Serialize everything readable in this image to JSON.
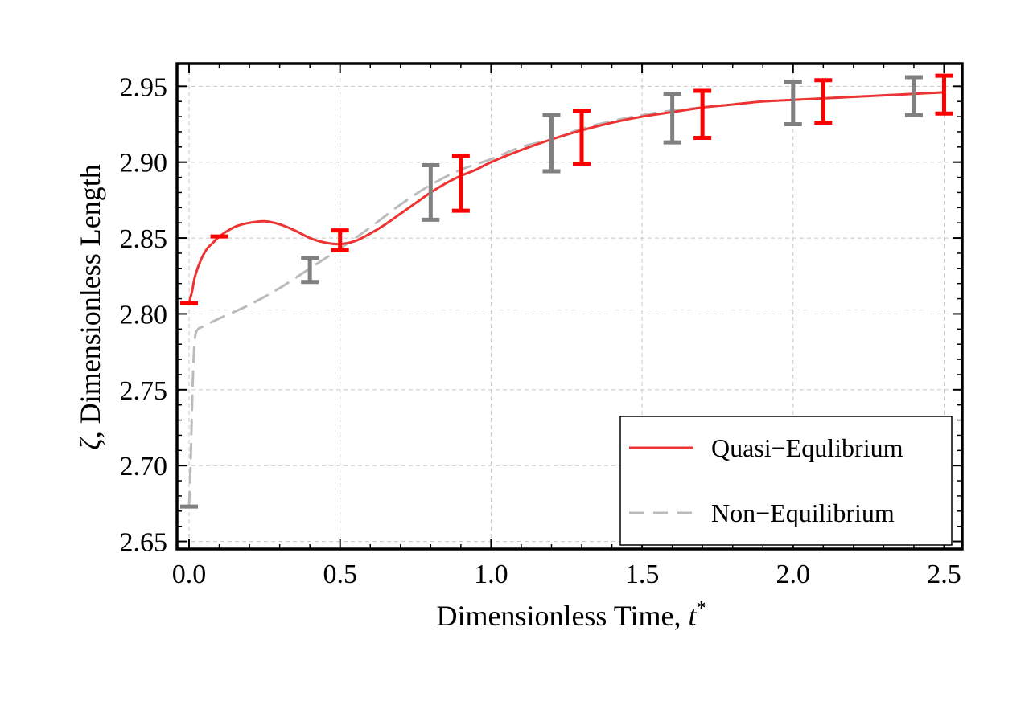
{
  "chart_data": {
    "type": "line",
    "title": "",
    "xlabel": "Dimensionless Time, ",
    "xlabel_var": "t",
    "xlabel_sup": "*",
    "ylabel_var": "ζ",
    "ylabel": ", Dimensionless Length",
    "xlim": [
      -0.04,
      2.56
    ],
    "ylim": [
      2.645,
      2.965
    ],
    "x_ticks": [
      0.0,
      0.5,
      1.0,
      1.5,
      2.0,
      2.5
    ],
    "x_tick_labels": [
      "0.0",
      "0.5",
      "1.0",
      "1.5",
      "2.0",
      "2.5"
    ],
    "y_ticks": [
      2.65,
      2.7,
      2.75,
      2.8,
      2.85,
      2.9,
      2.95
    ],
    "y_tick_labels": [
      "2.65",
      "2.70",
      "2.75",
      "2.80",
      "2.85",
      "2.90",
      "2.95"
    ],
    "grid": true,
    "legend_position": "bottom-right",
    "series": [
      {
        "name": "Quasi−Equlibrium",
        "color": "#ee3333",
        "style": "solid",
        "x": [
          0.0,
          0.01,
          0.02,
          0.04,
          0.06,
          0.08,
          0.1,
          0.13,
          0.16,
          0.2,
          0.25,
          0.3,
          0.35,
          0.4,
          0.45,
          0.5,
          0.55,
          0.6,
          0.65,
          0.7,
          0.75,
          0.8,
          0.85,
          0.9,
          0.95,
          1.0,
          1.1,
          1.2,
          1.3,
          1.4,
          1.5,
          1.6,
          1.7,
          1.8,
          1.9,
          2.0,
          2.1,
          2.2,
          2.3,
          2.4,
          2.5
        ],
        "y": [
          2.807,
          2.815,
          2.825,
          2.836,
          2.843,
          2.847,
          2.851,
          2.855,
          2.858,
          2.86,
          2.861,
          2.859,
          2.855,
          2.85,
          2.847,
          2.846,
          2.848,
          2.853,
          2.859,
          2.866,
          2.873,
          2.88,
          2.886,
          2.891,
          2.895,
          2.9,
          2.908,
          2.915,
          2.921,
          2.926,
          2.93,
          2.933,
          2.936,
          2.938,
          2.94,
          2.941,
          2.942,
          2.943,
          2.944,
          2.945,
          2.946
        ]
      },
      {
        "name": "Non−Equilibrium",
        "color": "#bbbbbb",
        "style": "dashed",
        "x": [
          0.0,
          0.005,
          0.01,
          0.015,
          0.02,
          0.03,
          0.05,
          0.1,
          0.2,
          0.3,
          0.4,
          0.5,
          0.6,
          0.7,
          0.8,
          0.9,
          1.0,
          1.1,
          1.2,
          1.3,
          1.4,
          1.5,
          1.6,
          1.7,
          1.8,
          1.9,
          2.0,
          2.1,
          2.2,
          2.3,
          2.4,
          2.5
        ],
        "y": [
          2.673,
          2.7,
          2.74,
          2.77,
          2.785,
          2.79,
          2.792,
          2.797,
          2.806,
          2.817,
          2.83,
          2.843,
          2.857,
          2.872,
          2.885,
          2.895,
          2.902,
          2.91,
          2.915,
          2.922,
          2.927,
          2.931,
          2.934,
          2.936,
          2.938,
          2.94,
          2.941,
          2.942,
          2.943,
          2.944,
          2.945,
          2.946
        ]
      }
    ],
    "error_bars": [
      {
        "series": "Non−Equilibrium",
        "color": "#808080",
        "x": 0.0,
        "low": 2.673,
        "high": 2.673
      },
      {
        "series": "Non−Equilibrium",
        "color": "#808080",
        "x": 0.4,
        "low": 2.821,
        "high": 2.837
      },
      {
        "series": "Non−Equilibrium",
        "color": "#808080",
        "x": 0.8,
        "low": 2.862,
        "high": 2.898
      },
      {
        "series": "Non−Equilibrium",
        "color": "#808080",
        "x": 1.2,
        "low": 2.894,
        "high": 2.931
      },
      {
        "series": "Non−Equilibrium",
        "color": "#808080",
        "x": 1.6,
        "low": 2.913,
        "high": 2.945
      },
      {
        "series": "Non−Equilibrium",
        "color": "#808080",
        "x": 2.0,
        "low": 2.925,
        "high": 2.953
      },
      {
        "series": "Non−Equilibrium",
        "color": "#808080",
        "x": 2.4,
        "low": 2.931,
        "high": 2.956
      },
      {
        "series": "Quasi−Equlibrium",
        "color": "#ff0000",
        "x": 0.0,
        "low": 2.807,
        "high": 2.807
      },
      {
        "series": "Quasi−Equlibrium",
        "color": "#ff0000",
        "x": 0.1,
        "low": 2.851,
        "high": 2.851
      },
      {
        "series": "Quasi−Equlibrium",
        "color": "#ff0000",
        "x": 0.5,
        "low": 2.842,
        "high": 2.855
      },
      {
        "series": "Quasi−Equlibrium",
        "color": "#ff0000",
        "x": 0.9,
        "low": 2.868,
        "high": 2.904
      },
      {
        "series": "Quasi−Equlibrium",
        "color": "#ff0000",
        "x": 1.3,
        "low": 2.899,
        "high": 2.934
      },
      {
        "series": "Quasi−Equlibrium",
        "color": "#ff0000",
        "x": 1.7,
        "low": 2.916,
        "high": 2.947
      },
      {
        "series": "Quasi−Equlibrium",
        "color": "#ff0000",
        "x": 2.1,
        "low": 2.926,
        "high": 2.954
      },
      {
        "series": "Quasi−Equlibrium",
        "color": "#ff0000",
        "x": 2.5,
        "low": 2.932,
        "high": 2.957
      }
    ]
  }
}
